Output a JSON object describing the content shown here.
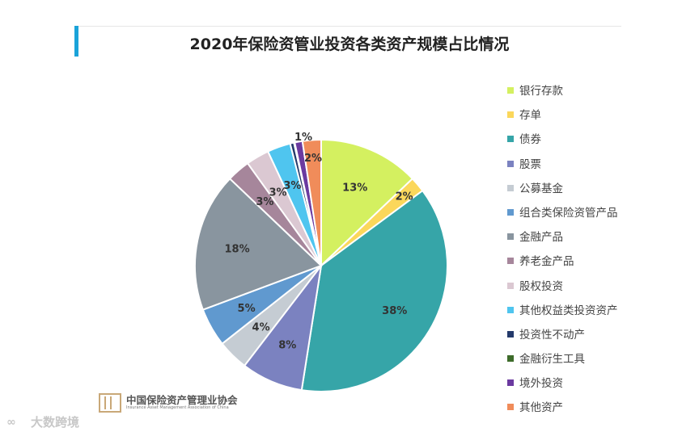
{
  "title": "2020年保险资管业投资各类资产规模占比情况",
  "colors": {
    "title_accent": "#1aa3d9"
  },
  "chart_data": {
    "type": "pie",
    "title": "2020年保险资管业投资各类资产规模占比情况",
    "legend_position": "right",
    "slices": [
      {
        "name": "银行存款",
        "value": 13,
        "label": "13%",
        "color": "#d4f060"
      },
      {
        "name": "存单",
        "value": 2,
        "label": "2%",
        "color": "#fbd75b"
      },
      {
        "name": "债券",
        "value": 38,
        "label": "38%",
        "color": "#36a5a8"
      },
      {
        "name": "股票",
        "value": 8,
        "label": "8%",
        "color": "#7b82c0"
      },
      {
        "name": "公募基金",
        "value": 4,
        "label": "4%",
        "color": "#c5ccd3"
      },
      {
        "name": "组合类保险资管产品",
        "value": 5,
        "label": "5%",
        "color": "#6099cf"
      },
      {
        "name": "金融产品",
        "value": 18,
        "label": "18%",
        "color": "#89959f"
      },
      {
        "name": "养老金产品",
        "value": 3,
        "label": "3%",
        "color": "#a6869b"
      },
      {
        "name": "股权投资",
        "value": 3,
        "label": "3%",
        "color": "#dbc8d2"
      },
      {
        "name": "其他权益类投资资产",
        "value": 3,
        "label": "3%",
        "color": "#4fc5ef"
      },
      {
        "name": "投资性不动产",
        "value": 0.5,
        "label": "",
        "color": "#243a6b"
      },
      {
        "name": "金融衍生工具",
        "value": 0.1,
        "label": "",
        "color": "#3d6b2a"
      },
      {
        "name": "境外投资",
        "value": 1,
        "label": "1%",
        "color": "#6b3aa0"
      },
      {
        "name": "其他资产",
        "value": 2.4,
        "label": "2%",
        "color": "#f08c5a"
      }
    ]
  },
  "logo": {
    "name_cn": "中国保险资产管理业协会",
    "name_en": "Insurance Asset Management Association of China"
  },
  "watermark": {
    "text": "大数跨境"
  }
}
